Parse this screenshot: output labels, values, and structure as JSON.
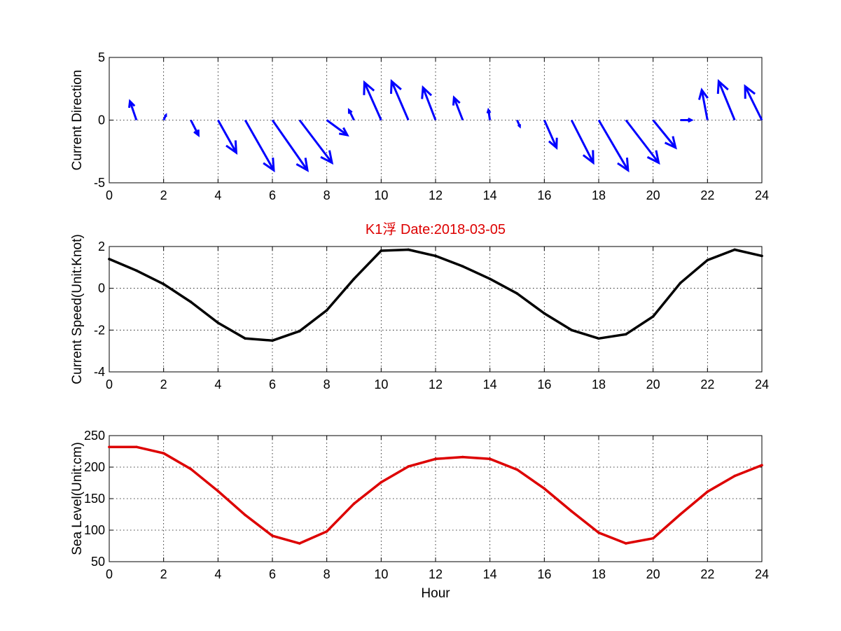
{
  "chart_data": [
    {
      "type": "quiver",
      "id": "direction",
      "title": "",
      "xlabel": "",
      "ylabel": "Current Direction",
      "xlim": [
        0,
        24
      ],
      "ylim": [
        -5,
        5
      ],
      "xticks": [
        0,
        2,
        4,
        6,
        8,
        10,
        12,
        14,
        16,
        18,
        20,
        22,
        24
      ],
      "yticks": [
        -5,
        0,
        5
      ],
      "grid": true,
      "color": "#0000ff",
      "x": [
        1,
        2,
        3,
        4,
        5,
        6,
        7,
        8,
        9,
        10,
        11,
        12,
        13,
        14,
        15,
        16,
        17,
        18,
        19,
        20,
        21,
        22,
        23,
        24
      ],
      "u": [
        -0.34,
        0.12,
        0.4,
        0.96,
        1.5,
        1.84,
        1.7,
        1.08,
        -0.26,
        -0.88,
        -0.88,
        -0.66,
        -0.46,
        -0.08,
        0.14,
        0.64,
        1.14,
        1.54,
        1.72,
        1.18,
        0.58,
        -0.3,
        -0.84,
        -0.88
      ],
      "v": [
        1.5,
        0.4,
        -1.2,
        -2.6,
        -4.0,
        -4.0,
        -3.4,
        -1.2,
        0.8,
        3.0,
        3.1,
        2.6,
        1.8,
        0.8,
        -0.5,
        -2.2,
        -3.4,
        -4.0,
        -3.4,
        -2.2,
        0.0,
        2.4,
        3.1,
        2.7
      ],
      "u_scale": 0.7
    },
    {
      "type": "line",
      "id": "speed",
      "title": "K1浮    Date:2018-03-05",
      "title_color": "#dd0000",
      "xlabel": "",
      "ylabel": "Current Speed(Unit:Knot)",
      "xlim": [
        0,
        24
      ],
      "ylim": [
        -4,
        2
      ],
      "xticks": [
        0,
        2,
        4,
        6,
        8,
        10,
        12,
        14,
        16,
        18,
        20,
        22,
        24
      ],
      "yticks": [
        -4,
        -2,
        0,
        2
      ],
      "grid": true,
      "series": [
        {
          "color": "#000000",
          "x": [
            0,
            1,
            2,
            3,
            4,
            5,
            6,
            7,
            8,
            9,
            10,
            11,
            12,
            13,
            14,
            15,
            16,
            17,
            18,
            19,
            20,
            21,
            22,
            23,
            24
          ],
          "values": [
            1.4,
            0.85,
            0.2,
            -0.65,
            -1.65,
            -2.4,
            -2.5,
            -2.05,
            -1.05,
            0.45,
            1.8,
            1.85,
            1.55,
            1.05,
            0.45,
            -0.25,
            -1.2,
            -2.0,
            -2.4,
            -2.2,
            -1.35,
            0.25,
            1.35,
            1.85,
            1.55
          ]
        }
      ]
    },
    {
      "type": "line",
      "id": "sealevel",
      "title": "",
      "xlabel": "Hour",
      "ylabel": "Sea Level(Unit:cm)",
      "xlim": [
        0,
        24
      ],
      "ylim": [
        50,
        250
      ],
      "xticks": [
        0,
        2,
        4,
        6,
        8,
        10,
        12,
        14,
        16,
        18,
        20,
        22,
        24
      ],
      "yticks": [
        50,
        100,
        150,
        200,
        250
      ],
      "grid": true,
      "series": [
        {
          "color": "#dd0000",
          "x": [
            0,
            1,
            2,
            3,
            4,
            5,
            6,
            7,
            8,
            9,
            10,
            11,
            12,
            13,
            14,
            15,
            16,
            17,
            18,
            19,
            20,
            21,
            22,
            23,
            24
          ],
          "values": [
            232,
            232,
            222,
            197,
            162,
            124,
            91,
            79,
            98,
            142,
            176,
            201,
            213,
            216,
            213,
            196,
            166,
            130,
            96,
            79,
            87,
            125,
            161,
            186,
            203
          ]
        }
      ]
    }
  ]
}
